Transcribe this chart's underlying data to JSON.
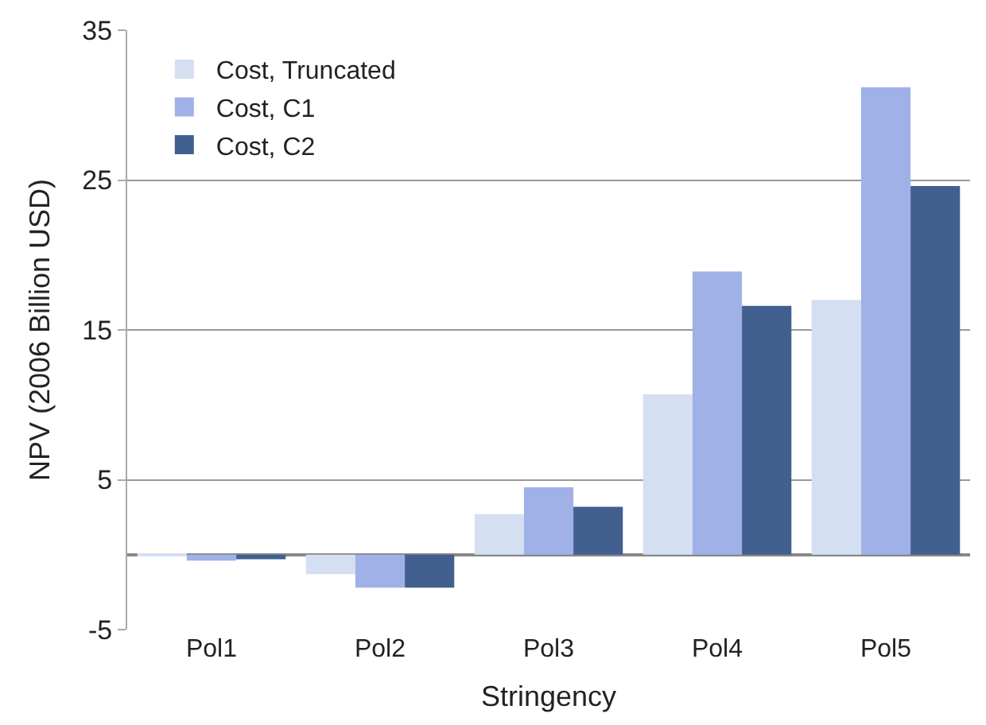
{
  "chart_data": {
    "type": "bar",
    "xlabel": "Stringency",
    "ylabel": "NPV (2006 Billion USD)",
    "categories": [
      "Pol1",
      "Pol2",
      "Pol3",
      "Pol4",
      "Pol5"
    ],
    "series": [
      {
        "name": "Cost, Truncated",
        "color": "#d5dff2",
        "values": [
          -0.1,
          -1.3,
          2.7,
          10.7,
          17.0
        ]
      },
      {
        "name": "Cost, C1",
        "color": "#9fb1e6",
        "values": [
          -0.4,
          -2.2,
          4.5,
          18.9,
          31.2
        ]
      },
      {
        "name": "Cost, C2",
        "color": "#41608f",
        "values": [
          -0.3,
          -2.2,
          3.2,
          16.6,
          24.6
        ]
      }
    ],
    "ylim": [
      -5,
      35
    ],
    "yticks": [
      -5,
      5,
      15,
      25,
      35
    ],
    "grid": "y",
    "legend": "top left"
  }
}
